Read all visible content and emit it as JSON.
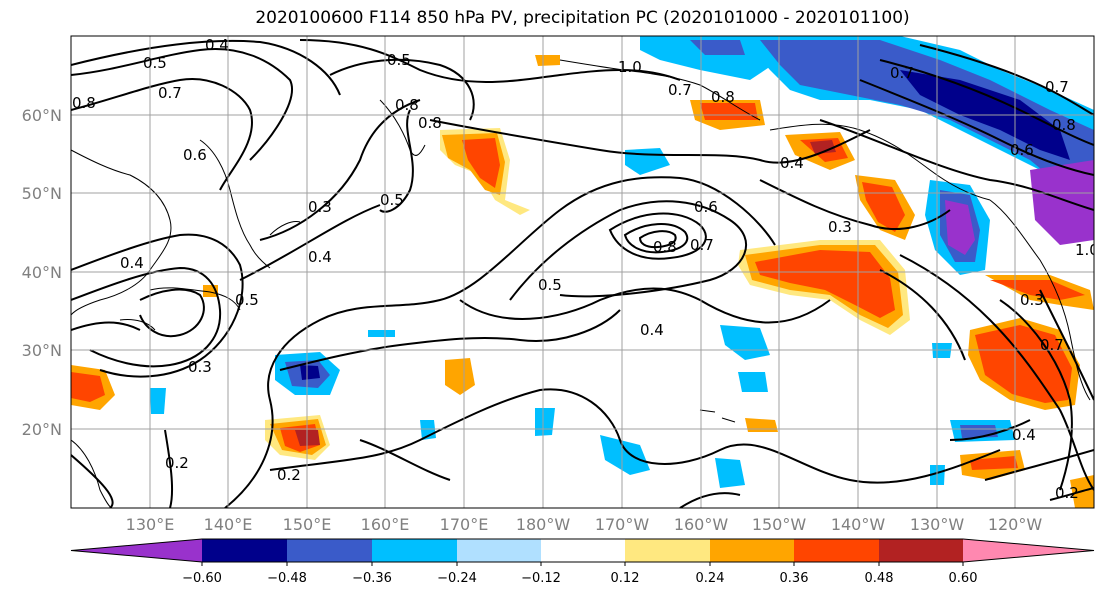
{
  "title": "2020100600 F114 850 hPa PV, precipitation PC (2020101000 - 2020101100)",
  "lat_labels": [
    "60°N",
    "50°N",
    "40°N",
    "30°N",
    "20°N"
  ],
  "lon_labels": [
    "130°E",
    "140°E",
    "150°E",
    "160°E",
    "170°E",
    "180°W",
    "170°W",
    "160°W",
    "150°W",
    "140°W",
    "130°W",
    "120°W"
  ],
  "colorbar": {
    "ticks": [
      "−0.60",
      "−0.48",
      "−0.36",
      "−0.24",
      "−0.12",
      "0.12",
      "0.24",
      "0.36",
      "0.48",
      "0.60"
    ],
    "colors": [
      "#9932cc",
      "#00008b",
      "#3a5bc9",
      "#00bfff",
      "#b0e0ff",
      "#ffffff",
      "#ffe880",
      "#ffa500",
      "#ff4500",
      "#b22222",
      "#ff88b0"
    ]
  },
  "contour_labels": [
    "0.4",
    "0.5",
    "0.5",
    "0.8",
    "0.7",
    "0.6",
    "0.8",
    "0.8",
    "1.0",
    "0.7",
    "0.8",
    "0.7",
    "0.7",
    "0.4",
    "0.3",
    "0.5",
    "0.3",
    "0.4",
    "0.4",
    "0.6",
    "0.8",
    "0.7",
    "0.5",
    "0.4",
    "0.3",
    "0.5",
    "0.3",
    "0.2",
    "0.2",
    "0.2",
    "0.4",
    "0.6",
    "0.7",
    "0.8",
    "1.0"
  ]
}
